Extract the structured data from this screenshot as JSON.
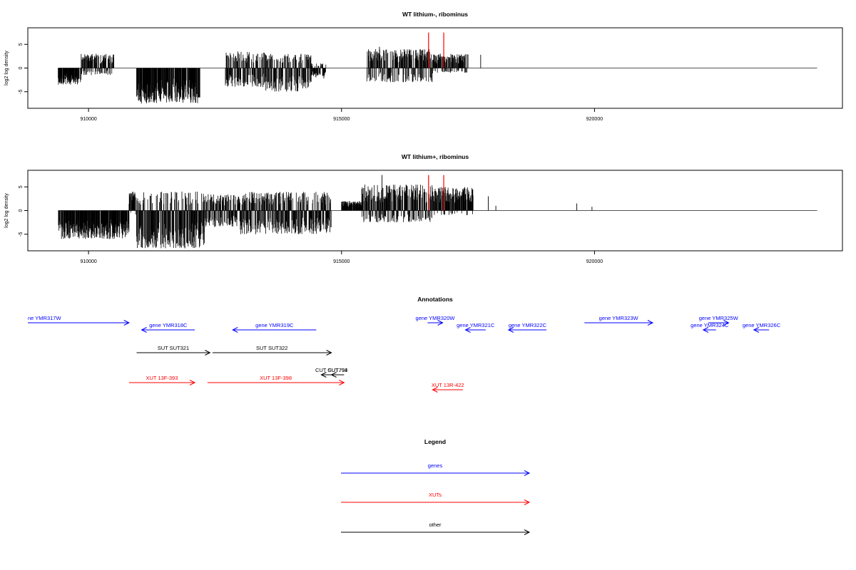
{
  "chart_data": [
    {
      "type": "bar",
      "title": "WT lithium-, ribominus",
      "ylabel": "log2 log density",
      "xlim": [
        908800,
        924900
      ],
      "ylim": [
        -8.5,
        8.5
      ],
      "xticks": [
        "910000",
        "915000",
        "920000"
      ],
      "xtick_values": [
        910000,
        915000,
        920000
      ],
      "yticks": [
        "-5",
        "0",
        "5"
      ],
      "ytick_values": [
        -5,
        0,
        5
      ],
      "baseline": {
        "from": 909400,
        "to": 924400
      },
      "series": [
        {
          "color": "#000000",
          "segments": [
            {
              "from": 909400,
              "to": 909850,
              "min": -3.5,
              "max": 0
            },
            {
              "from": 909850,
              "to": 910500,
              "min": -1.5,
              "max": 3.0
            },
            {
              "from": 910950,
              "to": 912200,
              "min": -7.5,
              "max": 0
            },
            {
              "from": 912700,
              "to": 913500,
              "min": -4.0,
              "max": 3.5
            },
            {
              "from": 913500,
              "to": 914400,
              "min": -5.0,
              "max": 3.0
            },
            {
              "from": 914400,
              "to": 914700,
              "min": -2.0,
              "max": 1.0
            },
            {
              "from": 915500,
              "to": 916800,
              "min": -3.0,
              "max": 4.0
            },
            {
              "from": 916800,
              "to": 917500,
              "min": -1.0,
              "max": 3.0
            }
          ],
          "spikes": [
            {
              "x": 910150,
              "y": 3.0
            },
            {
              "x": 912950,
              "y": 3.5
            },
            {
              "x": 914200,
              "y": 3.0
            },
            {
              "x": 914650,
              "y": -2.2
            },
            {
              "x": 915750,
              "y": 4.5
            },
            {
              "x": 917750,
              "y": 2.8
            }
          ]
        },
        {
          "color": "#ff0000",
          "spikes": [
            {
              "x": 916720,
              "y": 7.5
            },
            {
              "x": 917020,
              "y": 7.5
            }
          ]
        }
      ]
    },
    {
      "type": "bar",
      "title": "WT lithium+, ribominus",
      "ylabel": "log2 log density",
      "xlim": [
        908800,
        924900
      ],
      "ylim": [
        -8.5,
        8.5
      ],
      "xticks": [
        "910000",
        "915000",
        "920000"
      ],
      "xtick_values": [
        910000,
        915000,
        920000
      ],
      "yticks": [
        "-5",
        "0",
        "5"
      ],
      "ytick_values": [
        -5,
        0,
        5
      ],
      "baseline": {
        "from": 909400,
        "to": 924400
      },
      "series": [
        {
          "color": "#000000",
          "segments": [
            {
              "from": 909400,
              "to": 910800,
              "min": -6.0,
              "max": 0
            },
            {
              "from": 910800,
              "to": 910950,
              "min": -1.0,
              "max": 4.0
            },
            {
              "from": 910950,
              "to": 912300,
              "min": -8.0,
              "max": 4.0
            },
            {
              "from": 912300,
              "to": 913000,
              "min": -3.5,
              "max": 3.5
            },
            {
              "from": 913000,
              "to": 914800,
              "min": -5.0,
              "max": 4.0
            },
            {
              "from": 915000,
              "to": 915400,
              "min": 0,
              "max": 2.0
            },
            {
              "from": 915400,
              "to": 916800,
              "min": -2.5,
              "max": 5.5
            },
            {
              "from": 916800,
              "to": 917600,
              "min": -1.0,
              "max": 5.0
            }
          ],
          "spikes": [
            {
              "x": 915800,
              "y": 7.5
            },
            {
              "x": 917900,
              "y": 3.0
            },
            {
              "x": 918050,
              "y": 1.0
            },
            {
              "x": 919650,
              "y": 1.5
            },
            {
              "x": 919950,
              "y": 0.8
            }
          ]
        },
        {
          "color": "#ff0000",
          "spikes": [
            {
              "x": 916720,
              "y": 7.5
            },
            {
              "x": 917020,
              "y": 7.5
            }
          ]
        }
      ]
    }
  ],
  "annotations": {
    "title": "Annotations",
    "features": [
      {
        "label": "ne YMR317W",
        "kind": "gene",
        "strand": "+",
        "start": 908800,
        "end": 910800,
        "row": 0
      },
      {
        "label": "gene YMR318C",
        "kind": "gene",
        "strand": "-",
        "start": 911050,
        "end": 912100,
        "row": 1
      },
      {
        "label": "gene YMR319C",
        "kind": "gene",
        "strand": "-",
        "start": 912850,
        "end": 914500,
        "row": 1
      },
      {
        "label": "gene YMR320W",
        "kind": "gene",
        "strand": "+",
        "start": 916700,
        "end": 917000,
        "row": 0
      },
      {
        "label": "gene YMR321C",
        "kind": "gene",
        "strand": "-",
        "start": 917450,
        "end": 917850,
        "row": 1
      },
      {
        "label": "gene YMR322C",
        "kind": "gene",
        "strand": "-",
        "start": 918300,
        "end": 919050,
        "row": 1
      },
      {
        "label": "gene YMR323W",
        "kind": "gene",
        "strand": "+",
        "start": 919800,
        "end": 921150,
        "row": 0
      },
      {
        "label": "gene YMR325W",
        "kind": "gene",
        "strand": "+",
        "start": 922250,
        "end": 922650,
        "row": 0
      },
      {
        "label": "gene YMR324C",
        "kind": "gene",
        "strand": "-",
        "start": 922150,
        "end": 922400,
        "row": 1
      },
      {
        "label": "gene YMR326C",
        "kind": "gene",
        "strand": "-",
        "start": 923150,
        "end": 923450,
        "row": 1
      },
      {
        "label": "SUT SUT321",
        "kind": "other",
        "strand": "+",
        "start": 910950,
        "end": 912400,
        "row": 2
      },
      {
        "label": "SUT SUT322",
        "kind": "other",
        "strand": "+",
        "start": 912450,
        "end": 914800,
        "row": 2
      },
      {
        "label": "CUT CUT793",
        "kind": "other",
        "strand": "-",
        "start": 914600,
        "end": 915000,
        "row": 3
      },
      {
        "label": "SUT794",
        "kind": "other",
        "strand": "-",
        "start": 914800,
        "end": 915050,
        "row": 3
      },
      {
        "label": "XUT 13F-393",
        "kind": "xut",
        "strand": "+",
        "start": 910800,
        "end": 912100,
        "row": 4
      },
      {
        "label": "XUT 13F-398",
        "kind": "xut",
        "strand": "+",
        "start": 912350,
        "end": 915050,
        "row": 4
      },
      {
        "label": "XUT 13R-422",
        "kind": "xut",
        "strand": "-",
        "start": 916800,
        "end": 917400,
        "row": 5
      }
    ]
  },
  "legend": {
    "title": "Legend",
    "items": [
      {
        "label": "genes",
        "kind": "gene"
      },
      {
        "label": "XUTs",
        "kind": "xut"
      },
      {
        "label": "other",
        "kind": "other"
      }
    ]
  },
  "colors": {
    "gene": "#0000ff",
    "xut": "#ff0000",
    "other": "#000000",
    "axis": "#000000"
  }
}
